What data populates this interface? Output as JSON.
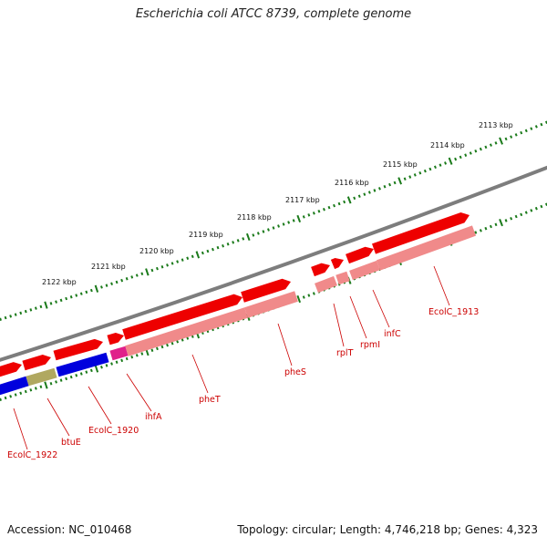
{
  "title": "Escherichia coli ATCC 8739, complete genome",
  "footer": {
    "accession": "Accession: NC_010468",
    "summary": "Topology: circular; Length: 4,746,218 bp; Genes: 4,323"
  },
  "colors": {
    "forward_gene": "#ee0000",
    "forward_gene_light": "#f08a8a",
    "reverse_gene": "#0000dd",
    "olive_gene": "#b0a860",
    "magenta_gene": "#e0208a",
    "backbone": "#808080",
    "tick": "#1a7a1a",
    "label": "#cc0000"
  },
  "kbp_ticks": [
    "2122 kbp",
    "2121 kbp",
    "2120 kbp",
    "2119 kbp",
    "2118 kbp",
    "2117 kbp",
    "2116 kbp",
    "2115 kbp",
    "2114 kbp",
    "2113 kbp"
  ],
  "gene_labels": [
    "EcolC_1922",
    "btuE",
    "EcolC_1920",
    "ihfA",
    "pheT",
    "pheS",
    "rplT",
    "rpmI",
    "infC",
    "EcolC_1913"
  ]
}
